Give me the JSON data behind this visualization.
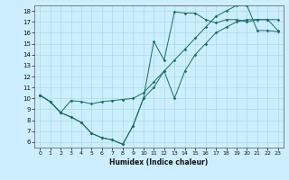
{
  "xlabel": "Humidex (Indice chaleur)",
  "bg_color": "#cceeff",
  "line_color": "#1a6b6b",
  "grid_color": "#aadddd",
  "xlim": [
    -0.5,
    23.5
  ],
  "ylim": [
    5.5,
    18.5
  ],
  "xticks": [
    0,
    1,
    2,
    3,
    4,
    5,
    6,
    7,
    8,
    9,
    10,
    11,
    12,
    13,
    14,
    15,
    16,
    17,
    18,
    19,
    20,
    21,
    22,
    23
  ],
  "yticks": [
    6,
    7,
    8,
    9,
    10,
    11,
    12,
    13,
    14,
    15,
    16,
    17,
    18
  ],
  "line1_x": [
    0,
    1,
    2,
    3,
    4,
    5,
    6,
    7,
    8,
    9,
    10,
    11,
    12,
    13,
    14,
    15,
    16,
    17,
    18,
    19,
    20,
    21,
    22,
    23
  ],
  "line1_y": [
    10.3,
    9.7,
    8.7,
    8.3,
    7.8,
    6.8,
    6.4,
    6.2,
    5.8,
    7.5,
    10.0,
    15.2,
    13.5,
    17.9,
    17.8,
    17.8,
    17.2,
    16.9,
    17.2,
    17.2,
    17.0,
    17.2,
    17.2,
    17.2
  ],
  "line2_x": [
    0,
    1,
    2,
    3,
    4,
    5,
    6,
    7,
    8,
    9,
    10,
    11,
    12,
    13,
    14,
    15,
    16,
    17,
    18,
    19,
    20,
    21,
    22,
    23
  ],
  "line2_y": [
    10.3,
    9.7,
    8.7,
    9.8,
    9.7,
    9.5,
    9.7,
    9.8,
    9.9,
    10.0,
    10.5,
    11.5,
    12.5,
    13.5,
    14.5,
    15.5,
    16.5,
    17.5,
    18.0,
    18.5,
    18.5,
    16.2,
    16.2,
    16.1
  ],
  "line3_x": [
    0,
    1,
    2,
    3,
    4,
    5,
    6,
    7,
    8,
    9,
    10,
    11,
    12,
    13,
    14,
    15,
    16,
    17,
    18,
    19,
    20,
    21,
    22,
    23
  ],
  "line3_y": [
    10.3,
    9.7,
    8.7,
    8.3,
    7.8,
    6.8,
    6.4,
    6.2,
    5.8,
    7.5,
    10.0,
    11.0,
    12.5,
    10.0,
    12.5,
    14.0,
    15.0,
    16.0,
    16.5,
    17.0,
    17.2,
    17.2,
    17.2,
    16.2
  ]
}
